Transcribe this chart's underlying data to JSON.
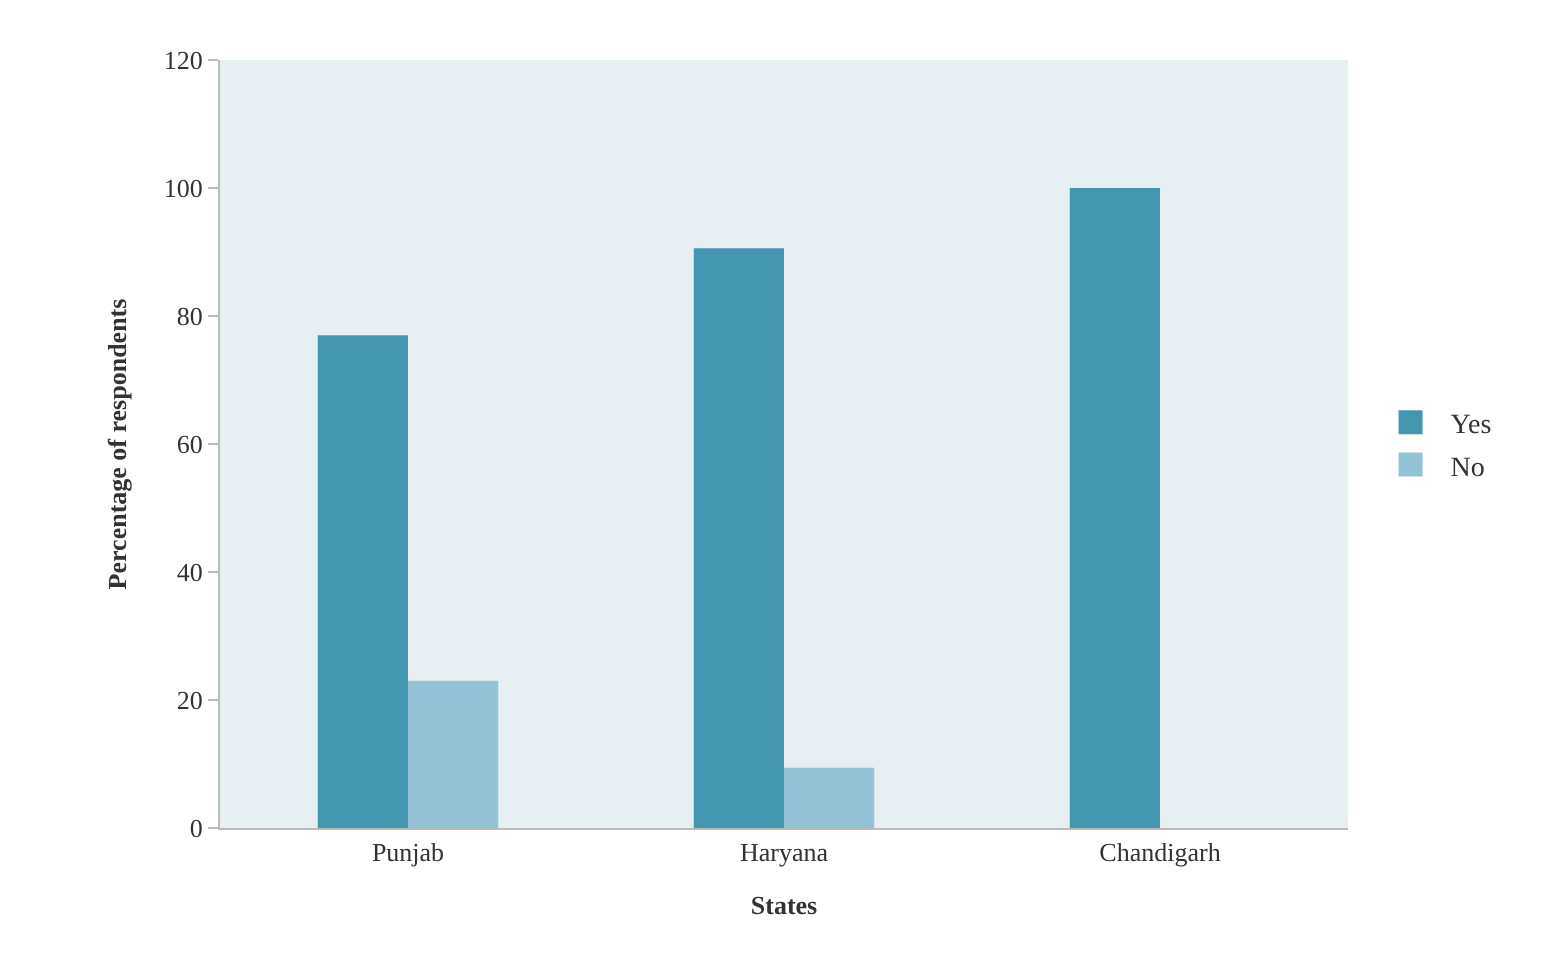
{
  "chart_data": {
    "type": "bar",
    "xlabel": "States",
    "ylabel": "Percentage of respondents",
    "categories": [
      "Punjab",
      "Haryana",
      "Chandigarh"
    ],
    "series": [
      {
        "name": "Yes",
        "color": "#4398b0",
        "values": [
          77,
          90.6,
          100
        ]
      },
      {
        "name": "No",
        "color": "#93c3d5",
        "values": [
          23,
          9.4,
          0
        ]
      }
    ],
    "ylim": [
      0,
      120
    ],
    "yticks": [
      0,
      20,
      40,
      60,
      80,
      100,
      120
    ],
    "grid": false,
    "legend": "right"
  }
}
